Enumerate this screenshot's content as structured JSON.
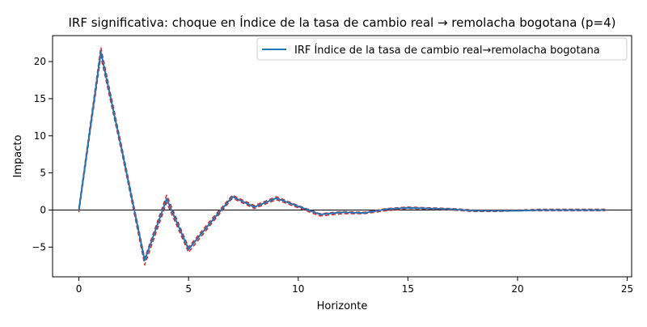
{
  "chart_data": {
    "type": "line",
    "title": "IRF significativa: choque en Índice de la tasa de cambio real → remolacha bogotana (p=4)",
    "xlabel": "Horizonte",
    "ylabel": "Impacto",
    "xlim": [
      -1.2,
      25.2
    ],
    "ylim": [
      -9,
      23.5
    ],
    "xticks": [
      0,
      5,
      10,
      15,
      20,
      25
    ],
    "yticks": [
      -5,
      0,
      5,
      10,
      15,
      20
    ],
    "grid": false,
    "legend_position": "top-right",
    "zero_line": true,
    "x": [
      0,
      1,
      2,
      3,
      4,
      5,
      6,
      7,
      8,
      9,
      10,
      11,
      12,
      13,
      14,
      15,
      16,
      17,
      18,
      19,
      20,
      21,
      22,
      23,
      24
    ],
    "series": [
      {
        "name": "IRF Índice de la tasa de cambio real→remolacha bogotana",
        "style": "solid",
        "color": "#1f77b4",
        "values": [
          0.0,
          21.3,
          7.5,
          -6.8,
          1.5,
          -5.3,
          -1.7,
          1.8,
          0.4,
          1.6,
          0.5,
          -0.6,
          -0.3,
          -0.4,
          0.1,
          0.3,
          0.2,
          0.1,
          -0.1,
          -0.1,
          -0.1,
          0.0,
          0.0,
          0.0,
          0.0
        ]
      },
      {
        "name": "",
        "style": "dashed",
        "color": "#d62728",
        "values": [
          0.3,
          21.9,
          7.9,
          -6.5,
          2.0,
          -5.0,
          -1.4,
          2.0,
          0.6,
          1.8,
          0.6,
          -0.5,
          -0.2,
          -0.3,
          0.2,
          0.4,
          0.3,
          0.2,
          0.0,
          0.0,
          0.0,
          0.1,
          0.1,
          0.1,
          0.1
        ]
      },
      {
        "name": "",
        "style": "dashed",
        "color": "#d62728",
        "values": [
          -0.3,
          20.7,
          7.1,
          -7.4,
          1.0,
          -5.7,
          -2.0,
          1.6,
          0.2,
          1.4,
          0.3,
          -0.8,
          -0.5,
          -0.5,
          -0.1,
          0.2,
          0.1,
          0.0,
          -0.2,
          -0.2,
          -0.1,
          -0.1,
          -0.1,
          -0.1,
          -0.1
        ]
      }
    ]
  }
}
